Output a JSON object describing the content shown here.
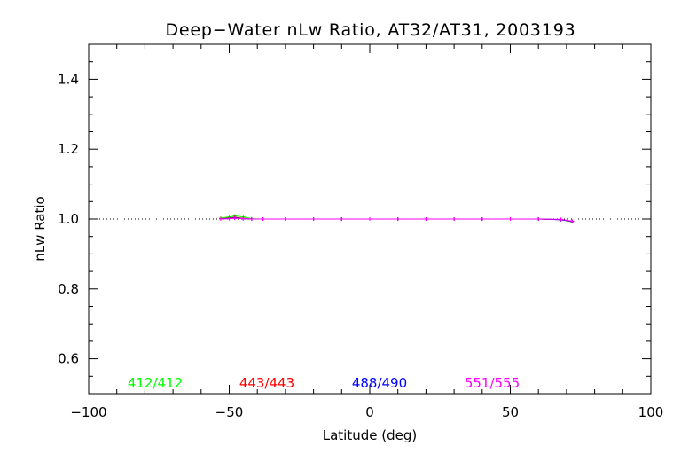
{
  "chart_data": {
    "type": "line",
    "title": "Deep−Water nLw Ratio, AT32/AT31, 2003193",
    "xlabel": "Latitude (deg)",
    "ylabel": "nLw Ratio",
    "xlim": [
      -100,
      100
    ],
    "ylim": [
      0.5,
      1.5
    ],
    "xticks": [
      -100,
      -50,
      0,
      50,
      100
    ],
    "xtick_labels": [
      "−100",
      "−50",
      "0",
      "50",
      "100"
    ],
    "yticks": [
      0.6,
      0.8,
      1.0,
      1.2,
      1.4
    ],
    "ytick_labels": [
      "0.6",
      "0.8",
      "1.0",
      "1.2",
      "1.4"
    ],
    "reference_line": {
      "y": 1.0,
      "style": "dotted"
    },
    "grid": false,
    "legend_position": "bottom",
    "series": [
      {
        "name": "412/412",
        "color": "#00ff00",
        "x": [
          -53,
          -50,
          -48,
          -45,
          -42,
          -38,
          -30,
          -20,
          -10,
          0,
          10,
          20,
          30,
          40,
          50,
          60,
          68,
          72
        ],
        "y": [
          1.003,
          1.006,
          1.009,
          1.006,
          1.001,
          1.0,
          1.0,
          1.0,
          1.0,
          1.0,
          1.0,
          1.0,
          1.0,
          1.0,
          1.0,
          1.0,
          0.998,
          0.992
        ]
      },
      {
        "name": "443/443",
        "color": "#ff0000",
        "x": [
          -53,
          -50,
          -48,
          -45,
          -42,
          -38,
          -30,
          -20,
          -10,
          0,
          10,
          20,
          30,
          40,
          50,
          60,
          68,
          72
        ],
        "y": [
          1.001,
          1.003,
          1.005,
          1.002,
          1.0,
          1.0,
          1.0,
          1.0,
          1.0,
          1.0,
          1.0,
          1.0,
          1.0,
          1.0,
          1.0,
          1.0,
          0.998,
          0.993
        ]
      },
      {
        "name": "488/490",
        "color": "#0000ff",
        "x": [
          -53,
          -50,
          -48,
          -45,
          -42,
          -38,
          -30,
          -20,
          -10,
          0,
          10,
          20,
          30,
          40,
          50,
          60,
          68,
          72
        ],
        "y": [
          1.0,
          1.002,
          1.003,
          1.001,
          1.0,
          1.0,
          1.0,
          1.0,
          1.0,
          1.0,
          1.0,
          1.0,
          1.0,
          1.0,
          1.0,
          1.0,
          0.998,
          0.993
        ]
      },
      {
        "name": "551/555",
        "color": "#ff00ff",
        "x": [
          -53,
          -50,
          -48,
          -45,
          -42,
          -38,
          -30,
          -20,
          -10,
          0,
          10,
          20,
          30,
          40,
          50,
          60,
          68,
          72
        ],
        "y": [
          1.0,
          1.001,
          1.002,
          1.001,
          1.0,
          1.0,
          1.0,
          1.0,
          1.0,
          1.0,
          1.0,
          1.0,
          1.0,
          1.0,
          1.0,
          1.0,
          0.999,
          0.994
        ]
      }
    ]
  }
}
